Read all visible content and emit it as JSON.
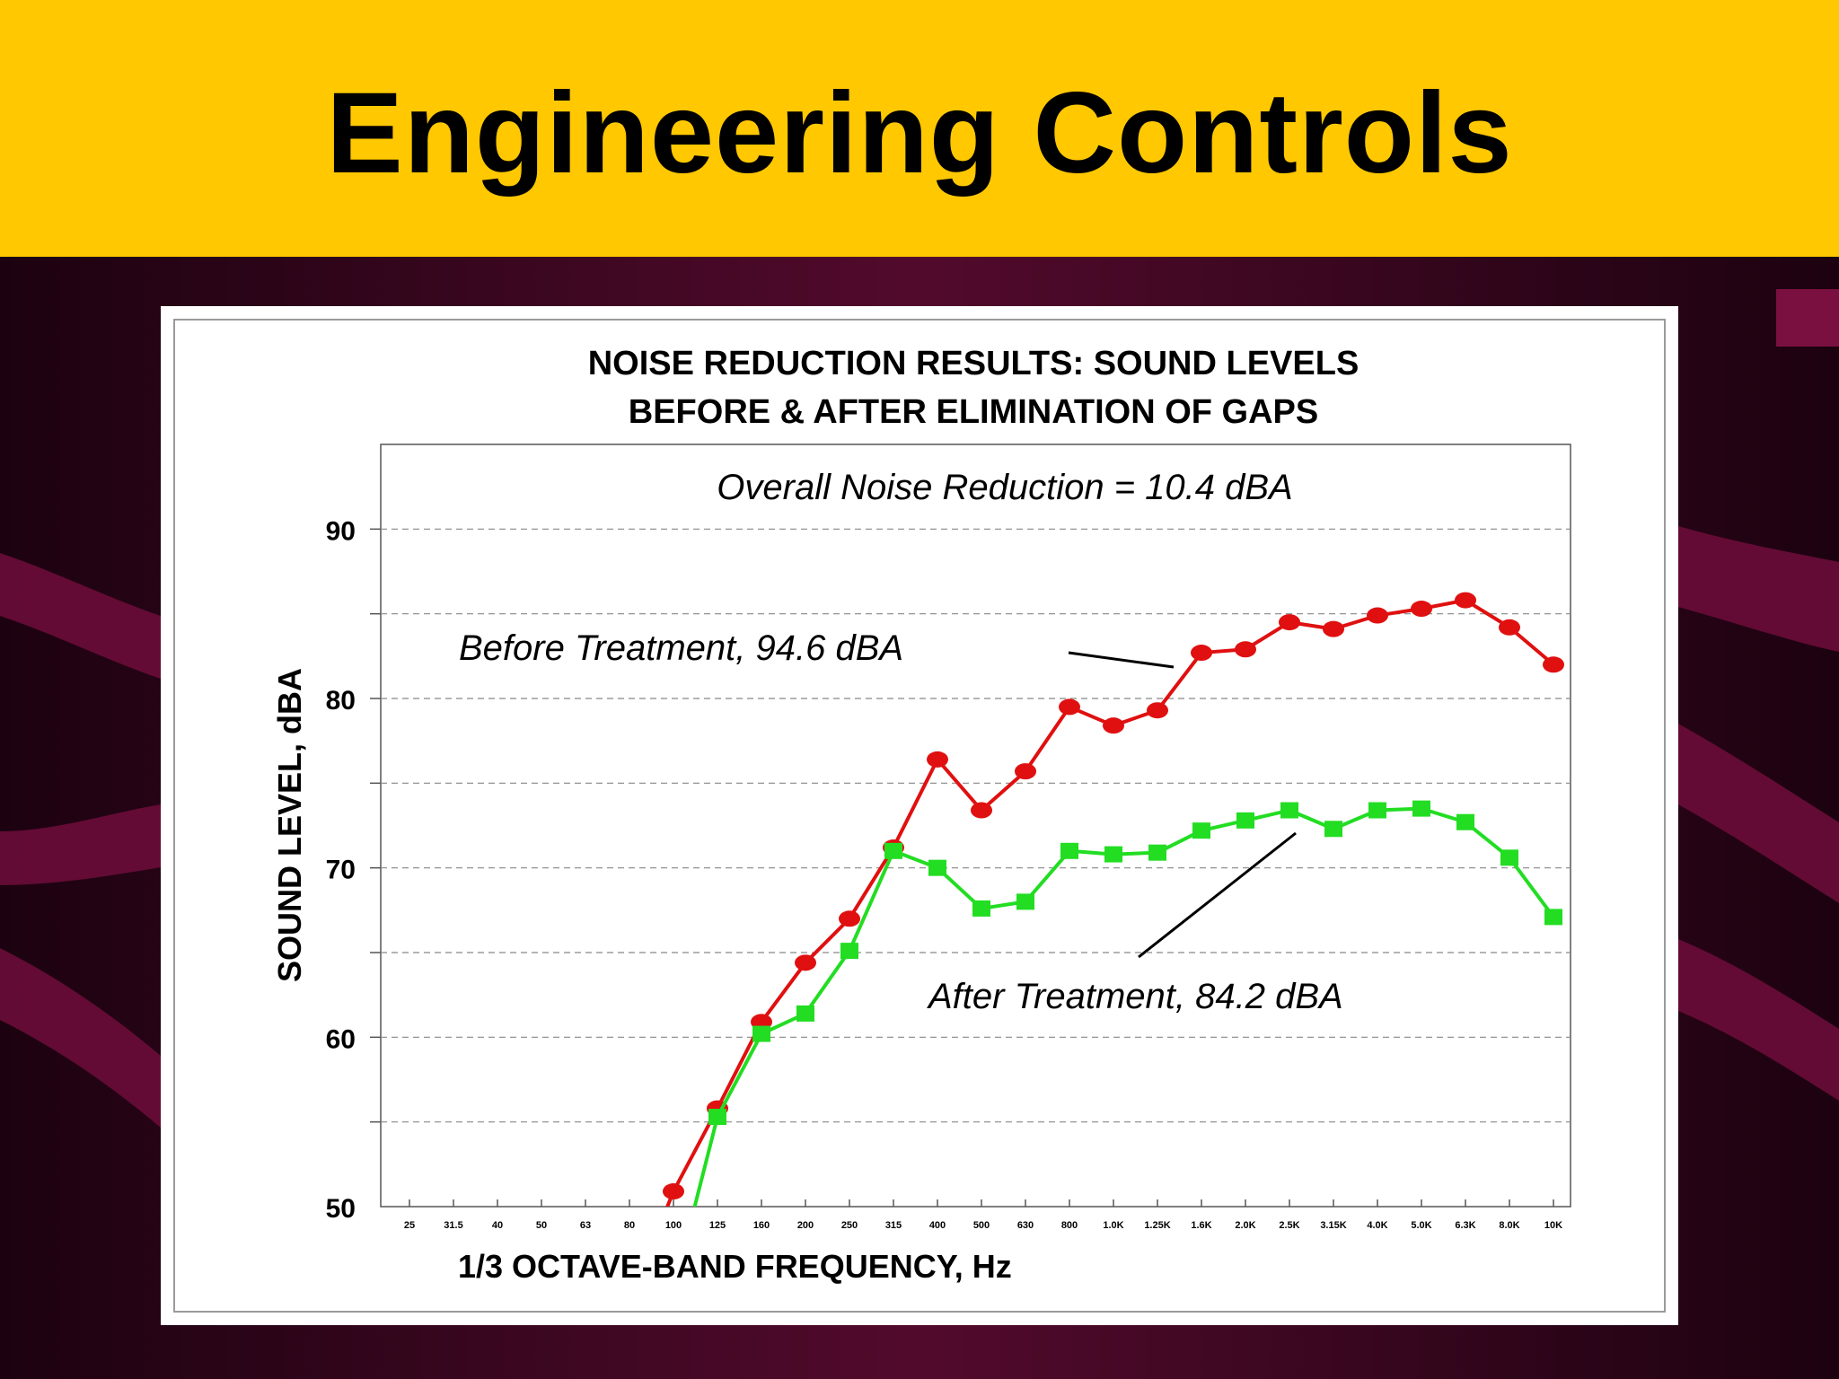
{
  "slide": {
    "title": "Engineering Controls"
  },
  "colors": {
    "title_bar": "#ffc800",
    "background": "#2a0516",
    "before_series": "#e01010",
    "after_series": "#22dd22"
  },
  "chart_data": {
    "type": "line",
    "title_lines": [
      "NOISE REDUCTION RESULTS: SOUND LEVELS",
      "BEFORE & AFTER ELIMINATION OF GAPS"
    ],
    "xlabel": "1/3 OCTAVE-BAND FREQUENCY, Hz",
    "ylabel": "SOUND LEVEL, dBA",
    "categories": [
      "25",
      "31.5",
      "40",
      "50",
      "63",
      "80",
      "100",
      "125",
      "160",
      "200",
      "250",
      "315",
      "400",
      "500",
      "630",
      "800",
      "1.0K",
      "1.25K",
      "1.6K",
      "2.0K",
      "2.5K",
      "3.15K",
      "4.0K",
      "5.0K",
      "6.3K",
      "8.0K",
      "10K"
    ],
    "ylim": [
      50,
      95
    ],
    "yticks": [
      50,
      60,
      70,
      80,
      90
    ],
    "gridlines": [
      55,
      60,
      65,
      70,
      75,
      80,
      85,
      90
    ],
    "annotation": "Overall Noise Reduction = 10.4 dBA",
    "series": [
      {
        "name": "Before Treatment, 94.6 dBA",
        "marker": "circle",
        "values": [
          null,
          null,
          null,
          null,
          null,
          null,
          50.9,
          55.8,
          60.9,
          64.4,
          67.0,
          71.2,
          76.4,
          73.4,
          75.7,
          79.5,
          78.4,
          79.3,
          82.7,
          82.9,
          84.5,
          84.1,
          84.9,
          85.3,
          85.8,
          84.2,
          82.0
        ]
      },
      {
        "name": "After Treatment, 84.2 dBA",
        "marker": "square",
        "values": [
          null,
          null,
          null,
          null,
          null,
          null,
          null,
          55.3,
          60.2,
          61.4,
          65.1,
          71.0,
          70.0,
          67.6,
          68.0,
          71.0,
          70.8,
          70.9,
          72.2,
          72.8,
          73.4,
          72.3,
          73.4,
          73.5,
          72.7,
          70.6,
          67.1
        ]
      }
    ]
  }
}
